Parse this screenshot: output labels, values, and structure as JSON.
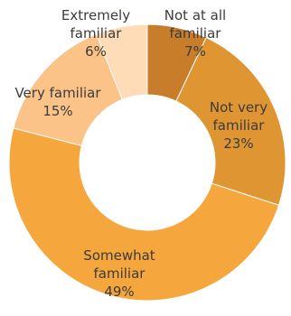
{
  "chart_data": {
    "type": "pie",
    "donut": true,
    "title": "",
    "slices": [
      {
        "label_lines": [
          "Not at all",
          "familiar"
        ],
        "pct_text": "7%",
        "value": 7,
        "color": "#c77d2a"
      },
      {
        "label_lines": [
          "Not very",
          "familiar"
        ],
        "pct_text": "23%",
        "value": 23,
        "color": "#df9632"
      },
      {
        "label_lines": [
          "Somewhat",
          "familiar"
        ],
        "pct_text": "49%",
        "value": 49,
        "color": "#f5a63c"
      },
      {
        "label_lines": [
          "Very familiar"
        ],
        "pct_text": "15%",
        "value": 15,
        "color": "#fcc388"
      },
      {
        "label_lines": [
          "Extremely",
          "familiar"
        ],
        "pct_text": "6%",
        "value": 6,
        "color": "#fedcb8"
      }
    ]
  }
}
